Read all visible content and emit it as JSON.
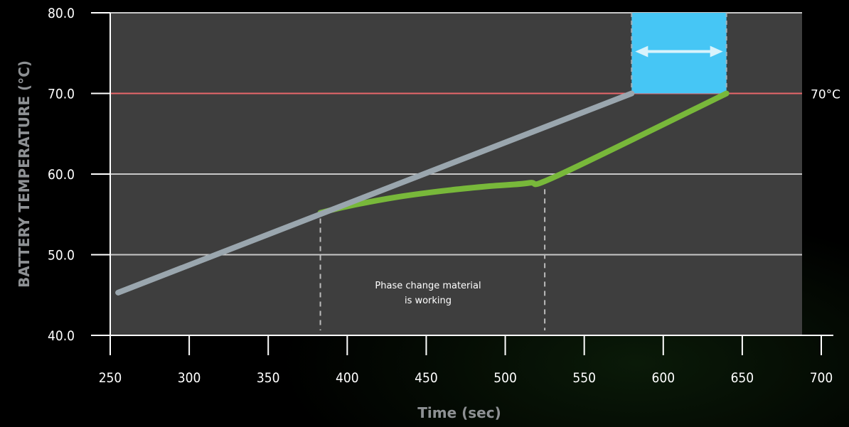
{
  "chart_data": {
    "type": "line",
    "title": "",
    "xlabel": "Time (sec)",
    "ylabel": "BATTERY TEMPERATURE (°C)",
    "xlim": [
      250,
      700
    ],
    "ylim": [
      40,
      80
    ],
    "x_ticks": [
      250,
      300,
      350,
      400,
      450,
      500,
      550,
      600,
      650,
      700
    ],
    "x_tick_labels": [
      "250",
      "300",
      "350",
      "400",
      "450",
      "500",
      "550",
      "600",
      "650",
      "700"
    ],
    "y_ticks": [
      40,
      50,
      60,
      70,
      80
    ],
    "y_tick_labels": [
      "40.0",
      "50.0",
      "60.0",
      "70.0",
      "80.0"
    ],
    "grid": "horizontal",
    "series": [
      {
        "color": "#9aa6ae",
        "points": [
          [
            255,
            45.3
          ],
          [
            580,
            70.0
          ]
        ]
      },
      {
        "color": "#78b83a",
        "points": [
          [
            383,
            55.2
          ],
          [
            400,
            56.0
          ],
          [
            430,
            57.1
          ],
          [
            460,
            57.9
          ],
          [
            490,
            58.5
          ],
          [
            515,
            58.9
          ],
          [
            533,
            59.8
          ],
          [
            640,
            70.0
          ]
        ]
      }
    ],
    "reference_line": {
      "y": 70,
      "label": "70°C",
      "color": "#e8676a"
    },
    "highlight_band": {
      "x_start": 580,
      "x_end": 640,
      "y_start": 70,
      "y_end": 80,
      "color": "#46c6f5"
    },
    "region_markers": {
      "x_start": 383,
      "x_end": 525
    },
    "annotation": {
      "line1": "Phase change material",
      "line2": "is working"
    },
    "colors": {
      "plot_background": "#3e3e3e",
      "grid": "#c8c8c8"
    }
  }
}
